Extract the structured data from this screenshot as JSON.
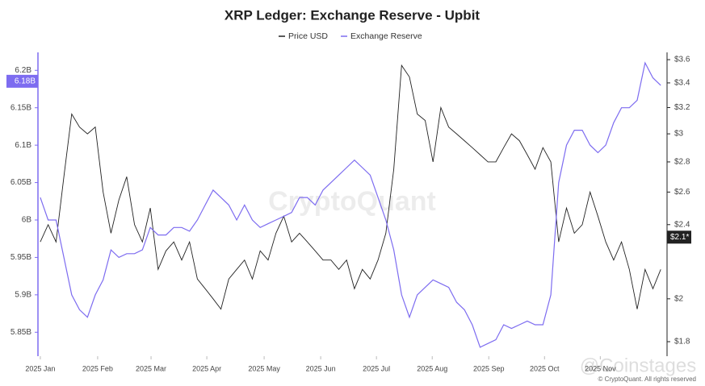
{
  "chart_data": {
    "type": "line",
    "title": "XRP Ledger: Exchange Reserve - Upbit",
    "xlim": [
      -0.3,
      79.8
    ],
    "xticks": [
      {
        "value": 0,
        "label": "2025 Jan"
      },
      {
        "value": 7.3,
        "label": "2025 Feb"
      },
      {
        "value": 14.1,
        "label": "2025 Mar"
      },
      {
        "value": 21.2,
        "label": "2025 Apr"
      },
      {
        "value": 28.5,
        "label": "2025 May"
      },
      {
        "value": 35.7,
        "label": "2025 Jun"
      },
      {
        "value": 42.8,
        "label": "2025 Jul"
      },
      {
        "value": 49.9,
        "label": "2025 Aug"
      },
      {
        "value": 57.1,
        "label": "2025 Sep"
      },
      {
        "value": 64.2,
        "label": "2025 Oct"
      },
      {
        "value": 71.3,
        "label": "2025 Nov"
      }
    ],
    "ylim": [
      5.818,
      6.224
    ],
    "yticks": [
      {
        "value": 5.85,
        "label": "5.85B"
      },
      {
        "value": 5.9,
        "label": "5.9B"
      },
      {
        "value": 5.95,
        "label": "5.95B"
      },
      {
        "value": 6,
        "label": "6B"
      },
      {
        "value": 6.05,
        "label": "6.05B"
      },
      {
        "value": 6.1,
        "label": "6.1B"
      },
      {
        "value": 6.15,
        "label": "6.15B"
      },
      {
        "value": 6.2,
        "label": "6.2B"
      }
    ],
    "y2lim": [
      1.737,
      3.665
    ],
    "y2log": true,
    "y2ticks": [
      {
        "value": 1.8,
        "label": "$1.8"
      },
      {
        "value": 2,
        "label": "$2"
      },
      {
        "value": 2.4,
        "label": "$2.4"
      },
      {
        "value": 2.6,
        "label": "$2.6"
      },
      {
        "value": 2.8,
        "label": "$2.8"
      },
      {
        "value": 3,
        "label": "$3"
      },
      {
        "value": 3.2,
        "label": "$3.2"
      },
      {
        "value": 3.4,
        "label": "$3.4"
      },
      {
        "value": 3.6,
        "label": "$3.6"
      }
    ],
    "series": [
      {
        "name": "Price USD",
        "color": "#222222",
        "axis": "y2",
        "last_label": "$2.1*",
        "values": [
          2.3,
          2.4,
          2.3,
          2.7,
          3.15,
          3.05,
          3.0,
          3.05,
          2.6,
          2.35,
          2.55,
          2.7,
          2.4,
          2.3,
          2.5,
          2.15,
          2.25,
          2.3,
          2.2,
          2.3,
          2.1,
          2.05,
          2.0,
          1.95,
          2.1,
          2.15,
          2.2,
          2.1,
          2.25,
          2.2,
          2.35,
          2.45,
          2.3,
          2.35,
          2.3,
          2.25,
          2.2,
          2.2,
          2.15,
          2.2,
          2.05,
          2.15,
          2.1,
          2.2,
          2.35,
          2.75,
          3.55,
          3.45,
          3.15,
          3.1,
          2.8,
          3.2,
          3.05,
          3.0,
          2.95,
          2.9,
          2.85,
          2.8,
          2.8,
          2.9,
          3.0,
          2.95,
          2.85,
          2.75,
          2.9,
          2.8,
          2.3,
          2.5,
          2.35,
          2.4,
          2.6,
          2.45,
          2.3,
          2.2,
          2.3,
          2.15,
          1.95,
          2.15,
          2.05,
          2.15
        ]
      },
      {
        "name": "Exchange Reserve",
        "color": "#7d6cf0",
        "axis": "y",
        "last_label": "6.18B",
        "values": [
          6.03,
          6.0,
          6.0,
          5.95,
          5.9,
          5.88,
          5.87,
          5.9,
          5.92,
          5.96,
          5.95,
          5.955,
          5.955,
          5.96,
          5.99,
          5.98,
          5.98,
          5.99,
          5.99,
          5.985,
          6.0,
          6.02,
          6.04,
          6.03,
          6.02,
          6.0,
          6.02,
          6.0,
          5.99,
          5.995,
          6.0,
          6.005,
          6.01,
          6.03,
          6.03,
          6.02,
          6.04,
          6.05,
          6.06,
          6.07,
          6.08,
          6.07,
          6.06,
          6.03,
          6.0,
          5.96,
          5.9,
          5.87,
          5.9,
          5.91,
          5.92,
          5.915,
          5.91,
          5.89,
          5.88,
          5.86,
          5.83,
          5.835,
          5.84,
          5.86,
          5.855,
          5.86,
          5.865,
          5.86,
          5.86,
          5.9,
          6.05,
          6.1,
          6.12,
          6.12,
          6.1,
          6.09,
          6.1,
          6.13,
          6.15,
          6.15,
          6.16,
          6.21,
          6.19,
          6.18
        ]
      }
    ],
    "watermark": "CryptoQuant",
    "copyright": "© CryptoQuant. All rights reserved",
    "source_watermark": "@Coinstages"
  }
}
